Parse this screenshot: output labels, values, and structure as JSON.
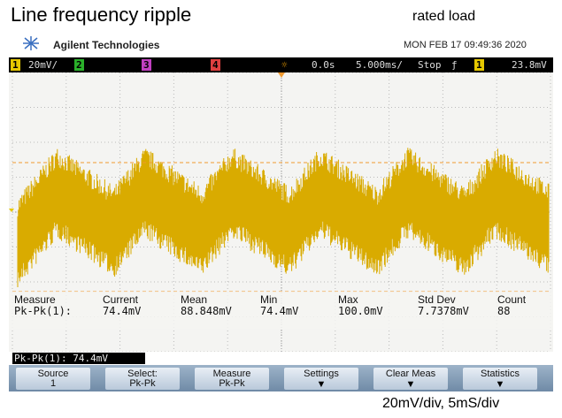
{
  "header": {
    "title": "Line frequency ripple",
    "subtitle": "rated load"
  },
  "scope": {
    "brand": "Agilent Technologies",
    "datetime": "MON FEB 17 09:49:36 2020",
    "status": [
      "1",
      "20mV/",
      "2",
      "3",
      "4",
      "0.0s",
      "5.000ms/",
      "Stop",
      "1",
      "23.8mV"
    ],
    "measurements": {
      "headers": [
        "Measure",
        "Current",
        "Mean",
        "Min",
        "Max",
        "Std Dev",
        "Count"
      ],
      "values": [
        "Pk-Pk(1):",
        "74.4mV",
        "88.848mV",
        "74.4mV",
        "100.0mV",
        "7.7378mV",
        "88"
      ]
    },
    "readout": "Pk-Pk(1): 74.4mV",
    "softkeys": [
      {
        "line1": "Source",
        "line2": "1"
      },
      {
        "line1": "Select:",
        "line2": "Pk-Pk"
      },
      {
        "line1": "Measure",
        "line2": "Pk-Pk"
      },
      {
        "line1": "Settings",
        "line2": ""
      },
      {
        "line1": "Clear Meas",
        "line2": ""
      },
      {
        "line1": "Statistics",
        "line2": ""
      }
    ]
  },
  "footer": "20mV/div, 5mS/div"
}
